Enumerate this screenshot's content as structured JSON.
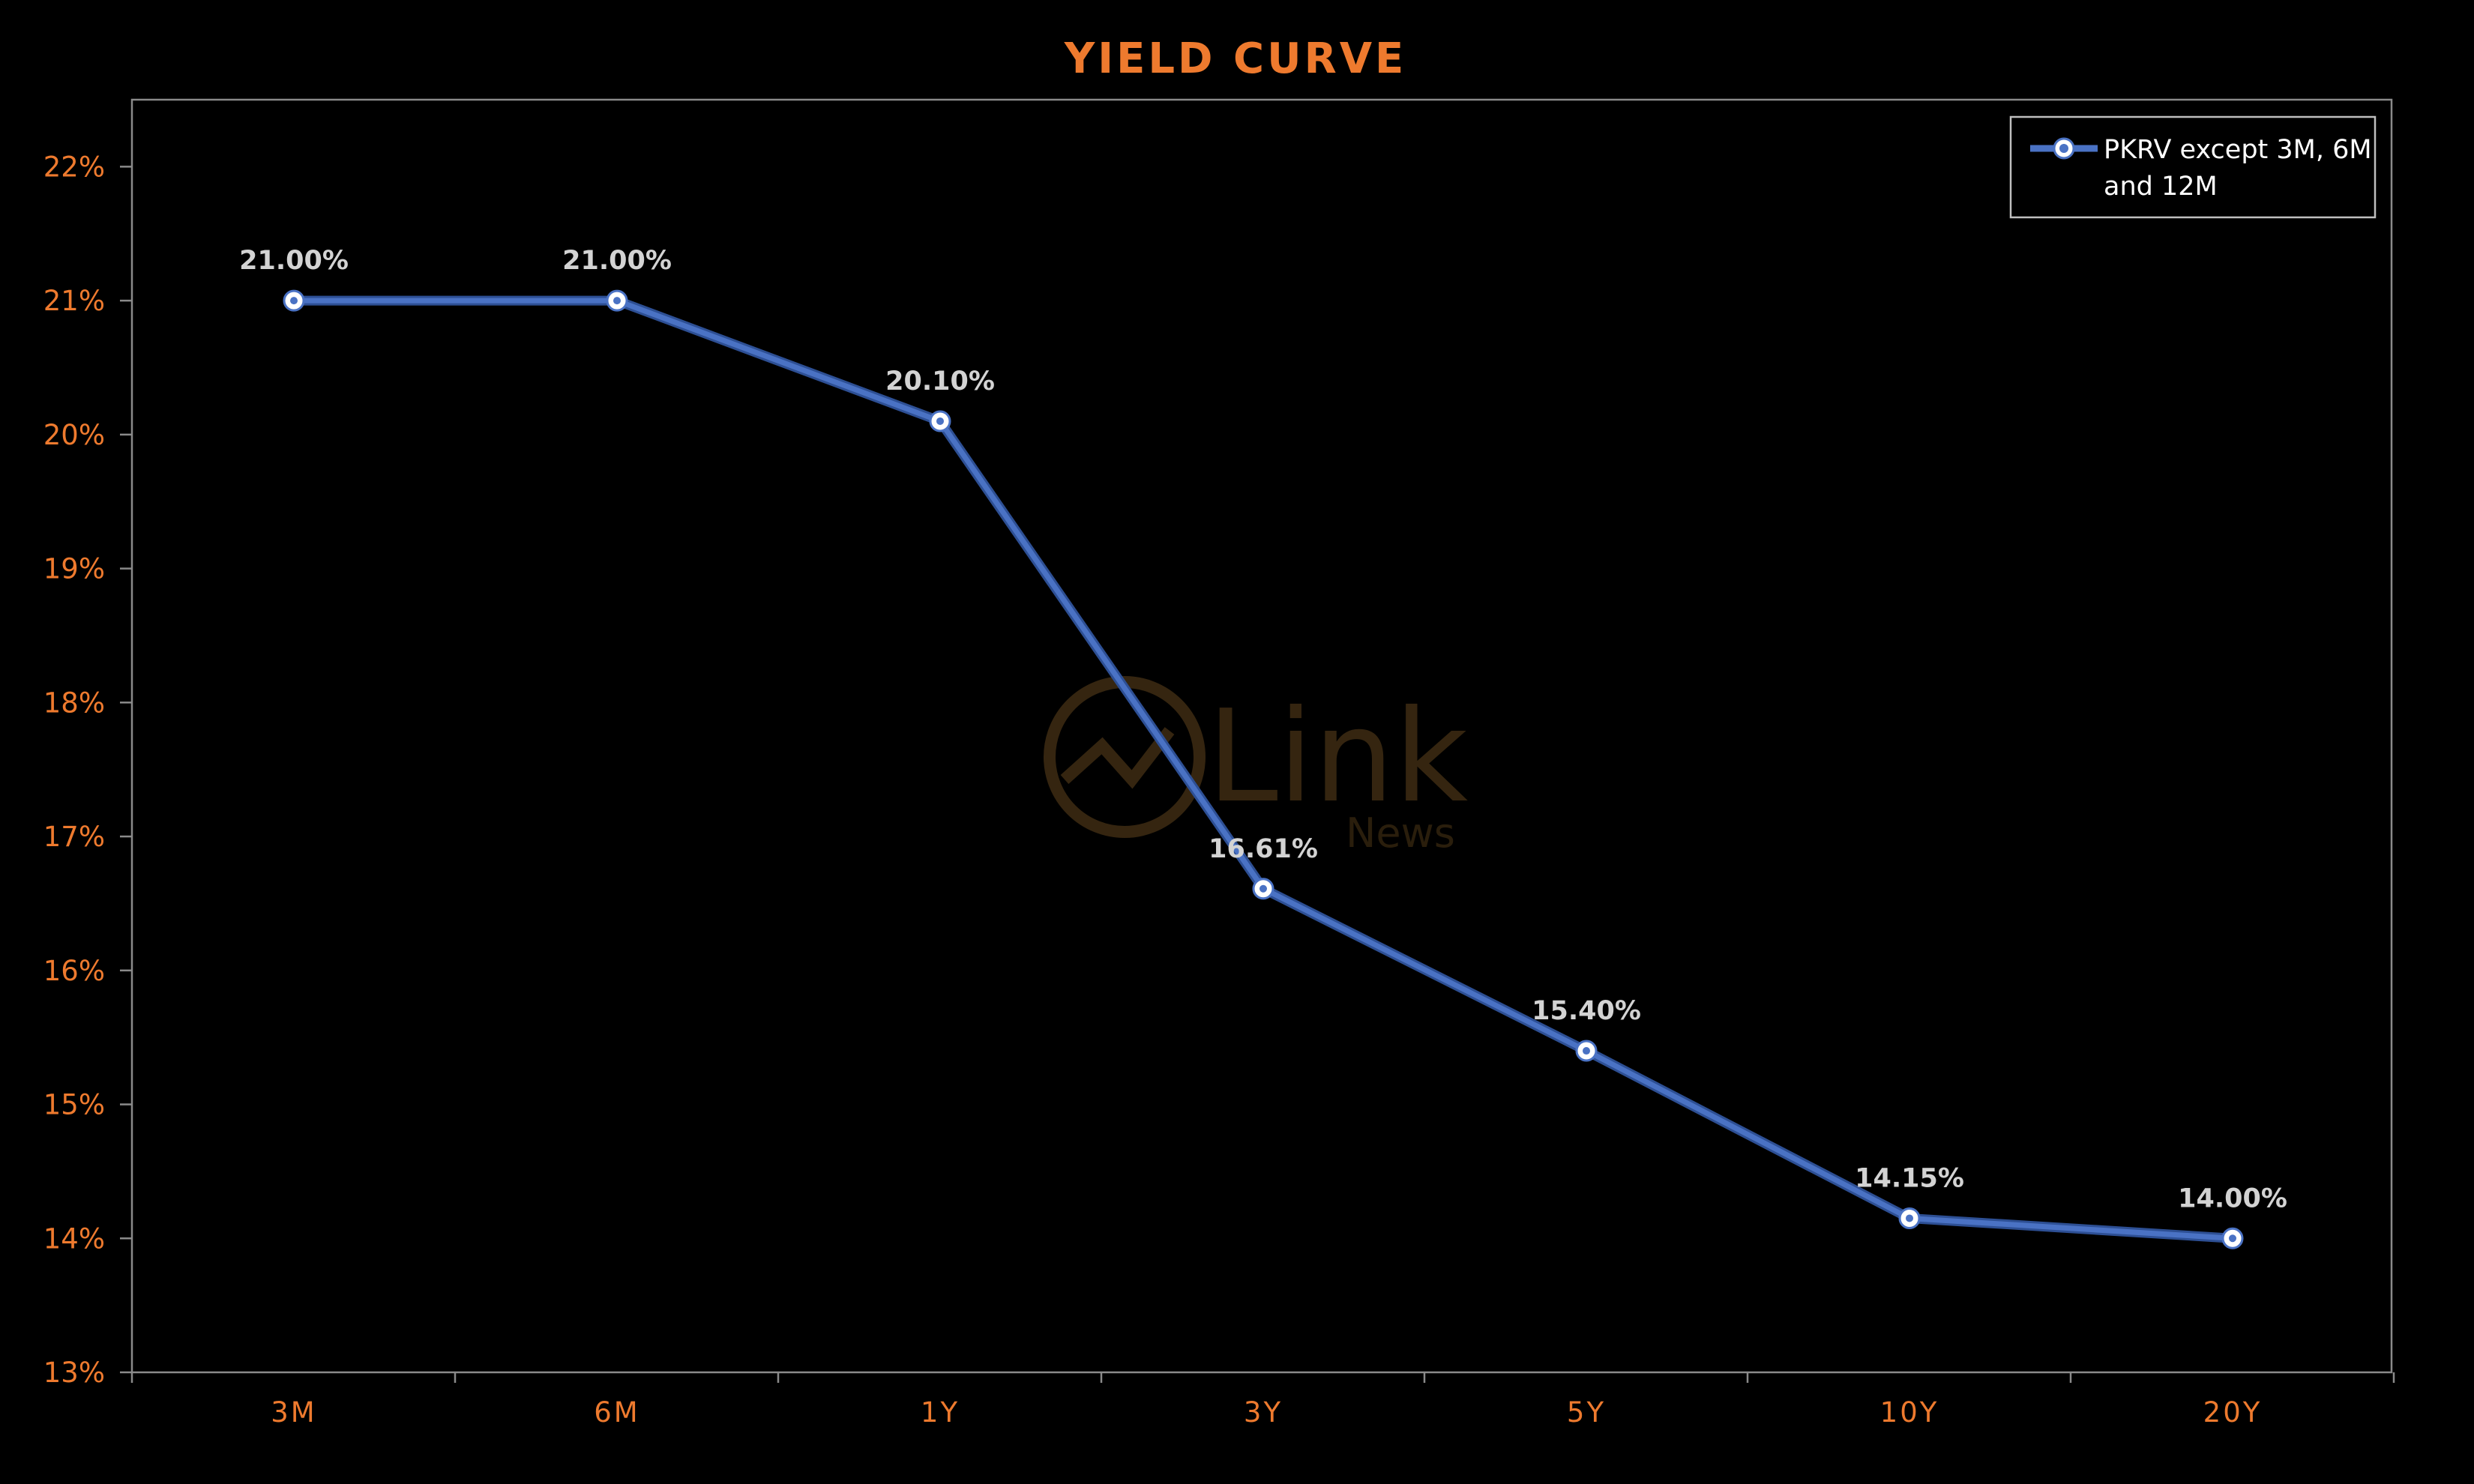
{
  "chart_data": {
    "type": "line",
    "title": "YIELD CURVE",
    "categories": [
      "3M",
      "6M",
      "1Y",
      "3Y",
      "5Y",
      "10Y",
      "20Y"
    ],
    "series": [
      {
        "name": "PKRV except 3M, 6M and 12M",
        "legend_lines": [
          "PKRV except 3M, 6M",
          "and 12M"
        ],
        "values": [
          21.0,
          21.0,
          20.1,
          16.61,
          15.4,
          14.15,
          14.0
        ],
        "data_labels": [
          "21.00%",
          "21.00%",
          "20.10%",
          "16.61%",
          "15.40%",
          "14.15%",
          "14.00%"
        ],
        "color": "#4a72c4"
      }
    ],
    "yticks": [
      13,
      14,
      15,
      16,
      17,
      18,
      19,
      20,
      21,
      22
    ],
    "ytick_labels": [
      "13%",
      "14%",
      "15%",
      "16%",
      "17%",
      "18%",
      "19%",
      "20%",
      "21%",
      "22%"
    ],
    "ylim": [
      13,
      22.5
    ],
    "xlabel": "",
    "ylabel": "",
    "grid": false,
    "drop_lines": true,
    "legend_position": "top-right",
    "colors": {
      "background": "#000000",
      "axis_text": "#ee7a2e",
      "frame": "#8a8a8a",
      "data_label": "#d3d3d3"
    },
    "watermark": {
      "text": "Link",
      "subtext": "News"
    }
  }
}
